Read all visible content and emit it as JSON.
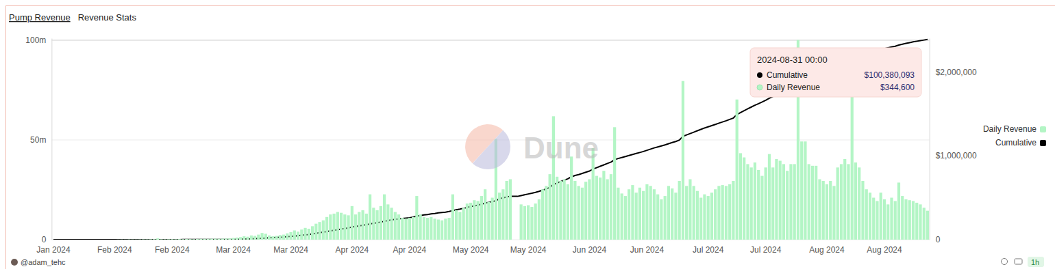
{
  "header": {
    "tabs": [
      "Pump Revenue",
      "Revenue Stats"
    ]
  },
  "chart_data": {
    "type": "bar",
    "categories": [
      "Jan 2024",
      null,
      null,
      null,
      null,
      null,
      null,
      null,
      null,
      null,
      null,
      null,
      null,
      null,
      null,
      null,
      null,
      "Feb 2024",
      null,
      null,
      null,
      null,
      null,
      null,
      null,
      null,
      null,
      null,
      null,
      null,
      null,
      null,
      null,
      "Feb 2024",
      null,
      null,
      null,
      null,
      null,
      null,
      null,
      null,
      null,
      null,
      null,
      null,
      null,
      null,
      null,
      null,
      "Mar 2024",
      null,
      null,
      null,
      null,
      null,
      null,
      null,
      null,
      null,
      null,
      null,
      null,
      null,
      null,
      null,
      "Mar 2024",
      null,
      null,
      null,
      null,
      null,
      null,
      null,
      null,
      null,
      null,
      null,
      null,
      null,
      null,
      null,
      null,
      "Apr 2024",
      null,
      null,
      null,
      null,
      null,
      null,
      null,
      null,
      null,
      null,
      null,
      null,
      null,
      null,
      null,
      "Apr 2024",
      null,
      null,
      null,
      null,
      null,
      null,
      null,
      null,
      null,
      null,
      null,
      null,
      null,
      null,
      null,
      null,
      "May 2024",
      null,
      null,
      null,
      null,
      null,
      null,
      null,
      null,
      null,
      null,
      null,
      null,
      null,
      null,
      null,
      "May 2024",
      null,
      null,
      null,
      null,
      null,
      null,
      null,
      null,
      null,
      null,
      null,
      null,
      null,
      null,
      null,
      null,
      "Jun 2024",
      null,
      null,
      null,
      null,
      null,
      null,
      null,
      null,
      null,
      null,
      null,
      null,
      null,
      null,
      null,
      "Jun 2024",
      null,
      null,
      null,
      null,
      null,
      null,
      null,
      null,
      null,
      null,
      null,
      null,
      null,
      null,
      null,
      null,
      "Jul 2024",
      null,
      null,
      null,
      null,
      null,
      null,
      null,
      null,
      null,
      null,
      null,
      null,
      null,
      null,
      null,
      "Jul 2024",
      null,
      null,
      null,
      null,
      null,
      null,
      null,
      null,
      null,
      null,
      null,
      null,
      null,
      null,
      null,
      null,
      "Aug 2024",
      null,
      null,
      null,
      null,
      null,
      null,
      null,
      null,
      null,
      null,
      null,
      null,
      null,
      null,
      null,
      "Aug 2024",
      null,
      null,
      null,
      null,
      null,
      null,
      null,
      null,
      null,
      null,
      null,
      null
    ],
    "series": [
      {
        "name": "Daily Revenue",
        "type": "bar",
        "color": "#b3f5c5",
        "axis": "y2",
        "values": [
          0,
          0,
          0,
          0,
          0,
          0,
          0,
          0,
          0,
          0,
          0,
          0,
          0,
          0,
          0,
          0,
          0,
          0,
          1000,
          2000,
          1500,
          3000,
          2500,
          2000,
          3000,
          4000,
          3500,
          5000,
          6000,
          15000,
          5000,
          4000,
          5000,
          6000,
          5000,
          7000,
          6000,
          8000,
          7000,
          6000,
          8000,
          9000,
          10000,
          9000,
          11000,
          12000,
          10000,
          12000,
          14000,
          15000,
          20000,
          25000,
          30000,
          40000,
          35000,
          50000,
          45000,
          60000,
          80000,
          70000,
          50000,
          40000,
          45000,
          55000,
          60000,
          75000,
          90000,
          110000,
          95000,
          120000,
          140000,
          130000,
          160000,
          190000,
          210000,
          230000,
          270000,
          300000,
          310000,
          330000,
          320000,
          300000,
          290000,
          400000,
          300000,
          330000,
          350000,
          310000,
          540000,
          380000,
          350000,
          400000,
          540000,
          420000,
          380000,
          330000,
          300000,
          260000,
          250000,
          260000,
          270000,
          520000,
          300000,
          270000,
          260000,
          270000,
          250000,
          240000,
          230000,
          250000,
          260000,
          540000,
          350000,
          330000,
          380000,
          430000,
          440000,
          470000,
          460000,
          520000,
          600000,
          450000,
          500000,
          1200000,
          560000,
          600000,
          700000,
          720000,
          0,
          0,
          420000,
          400000,
          410000,
          390000,
          430000,
          480000,
          600000,
          640000,
          780000,
          1470000,
          750000,
          700000,
          720000,
          660000,
          990000,
          700000,
          640000,
          620000,
          690000,
          720000,
          1090000,
          760000,
          740000,
          820000,
          720000,
          780000,
          1340000,
          620000,
          550000,
          520000,
          600000,
          650000,
          560000,
          620000,
          580000,
          660000,
          640000,
          600000,
          540000,
          480000,
          520000,
          640000,
          610000,
          560000,
          700000,
          1890000,
          640000,
          720000,
          640000,
          580000,
          500000,
          540000,
          520000,
          560000,
          600000,
          640000,
          650000,
          640000,
          660000,
          700000,
          1670000,
          1030000,
          980000,
          900000,
          860000,
          920000,
          830000,
          760000,
          860000,
          1020000,
          860000,
          960000,
          940000,
          900000,
          820000,
          900000,
          900000,
          2380000,
          1170000,
          1170000,
          900000,
          880000,
          880000,
          720000,
          700000,
          660000,
          700000,
          640000,
          860000,
          900000,
          960000,
          900000,
          1790000,
          920000,
          860000,
          700000,
          600000,
          560000,
          500000,
          460000,
          560000,
          480000,
          420000,
          500000,
          460000,
          680000,
          520000,
          480000,
          470000,
          460000,
          440000,
          420000,
          380000,
          344600
        ]
      },
      {
        "name": "Cumulative",
        "type": "line",
        "color": "#000000",
        "values": [
          0,
          0,
          0,
          0,
          0,
          0,
          0,
          0,
          0,
          0,
          0,
          0,
          0,
          0,
          0,
          0,
          0,
          0,
          0,
          0,
          0,
          0,
          0,
          0,
          0,
          0,
          0,
          0,
          0,
          0.01,
          0.02,
          0.02,
          0.03,
          0.03,
          0.04,
          0.04,
          0.05,
          0.05,
          0.06,
          0.06,
          0.07,
          0.07,
          0.08,
          0.08,
          0.09,
          0.09,
          0.1,
          0.1,
          0.1,
          0.1,
          0.1,
          0.2,
          0.2,
          0.3,
          0.3,
          0.4,
          0.5,
          0.6,
          0.7,
          0.8,
          0.9,
          1.0,
          1.1,
          1.2,
          1.3,
          1.5,
          1.6,
          1.8,
          2.0,
          2.2,
          2.4,
          2.6,
          2.9,
          3.2,
          3.5,
          3.8,
          4.1,
          4.4,
          4.7,
          5.0,
          5.3,
          5.6,
          5.9,
          6.3,
          6.6,
          6.9,
          7.2,
          7.5,
          7.9,
          8.2,
          8.5,
          8.8,
          9.2,
          9.6,
          9.9,
          10.2,
          10.4,
          10.6,
          10.8,
          11.0,
          11.3,
          11.8,
          12.1,
          12.4,
          12.6,
          12.9,
          13.1,
          13.4,
          13.6,
          13.8,
          14.1,
          14.6,
          15.0,
          15.3,
          15.7,
          16.1,
          16.6,
          16.9,
          17.3,
          17.8,
          18.3,
          18.7,
          19.1,
          19.5,
          20.6,
          21.0,
          21.4,
          21.7,
          21.7,
          21.7,
          22.1,
          22.5,
          22.9,
          23.3,
          23.7,
          24.2,
          24.8,
          25.4,
          26.2,
          27.7,
          28.4,
          29.1,
          29.8,
          30.5,
          31.5,
          32.2,
          32.6,
          33.2,
          33.8,
          34.4,
          35.4,
          36.1,
          36.8,
          37.5,
          38.2,
          38.9,
          40.1,
          40.7,
          41.2,
          41.7,
          42.2,
          42.7,
          43.2,
          43.7,
          44.2,
          44.8,
          45.4,
          46.0,
          46.5,
          47.0,
          47.5,
          48.1,
          48.7,
          49.2,
          49.9,
          51.8,
          52.5,
          53.2,
          53.9,
          54.6,
          55.3,
          56.0,
          56.6,
          57.2,
          57.8,
          58.4,
          59.0,
          59.6,
          60.3,
          61.0,
          62.7,
          63.7,
          64.7,
          65.6,
          66.5,
          67.4,
          68.2,
          69.0,
          69.9,
          70.9,
          71.8,
          72.7,
          73.6,
          74.5,
          75.3,
          76.2,
          77.1,
          79.5,
          80.7,
          81.9,
          82.8,
          83.7,
          84.6,
          85.3,
          86.0,
          86.7,
          87.1,
          87.6,
          88.2,
          88.8,
          89.4,
          90.0,
          91.2,
          91.8,
          92.4,
          92.9,
          93.4,
          93.9,
          94.4,
          94.9,
          95.4,
          95.8,
          96.2,
          96.6,
          97.0,
          97.6,
          98.0,
          98.4,
          98.8,
          99.2,
          99.5,
          99.8,
          100.1,
          100.380093
        ]
      }
    ],
    "ylim": [
      0,
      101
    ],
    "yticks": [
      0,
      {
        "value": 50,
        "label": "50m"
      },
      {
        "value": 100,
        "label": "100m"
      }
    ],
    "y2lim": [
      0,
      2400000
    ],
    "y2ticks": [
      0,
      {
        "value": 1000000,
        "label": "$1,000,000"
      },
      {
        "value": 2000000,
        "label": "$2,000,000"
      }
    ],
    "grid": true,
    "legend": "right",
    "tooltip": {
      "title": "2024-08-31 00:00",
      "rows": [
        {
          "name": "Cumulative",
          "value": "$100,380,093"
        },
        {
          "name": "Daily Revenue",
          "value": "$344,600"
        }
      ]
    },
    "watermark": "Dune"
  },
  "footer": {
    "author": "@adam_tehc",
    "refresh": "1h"
  }
}
